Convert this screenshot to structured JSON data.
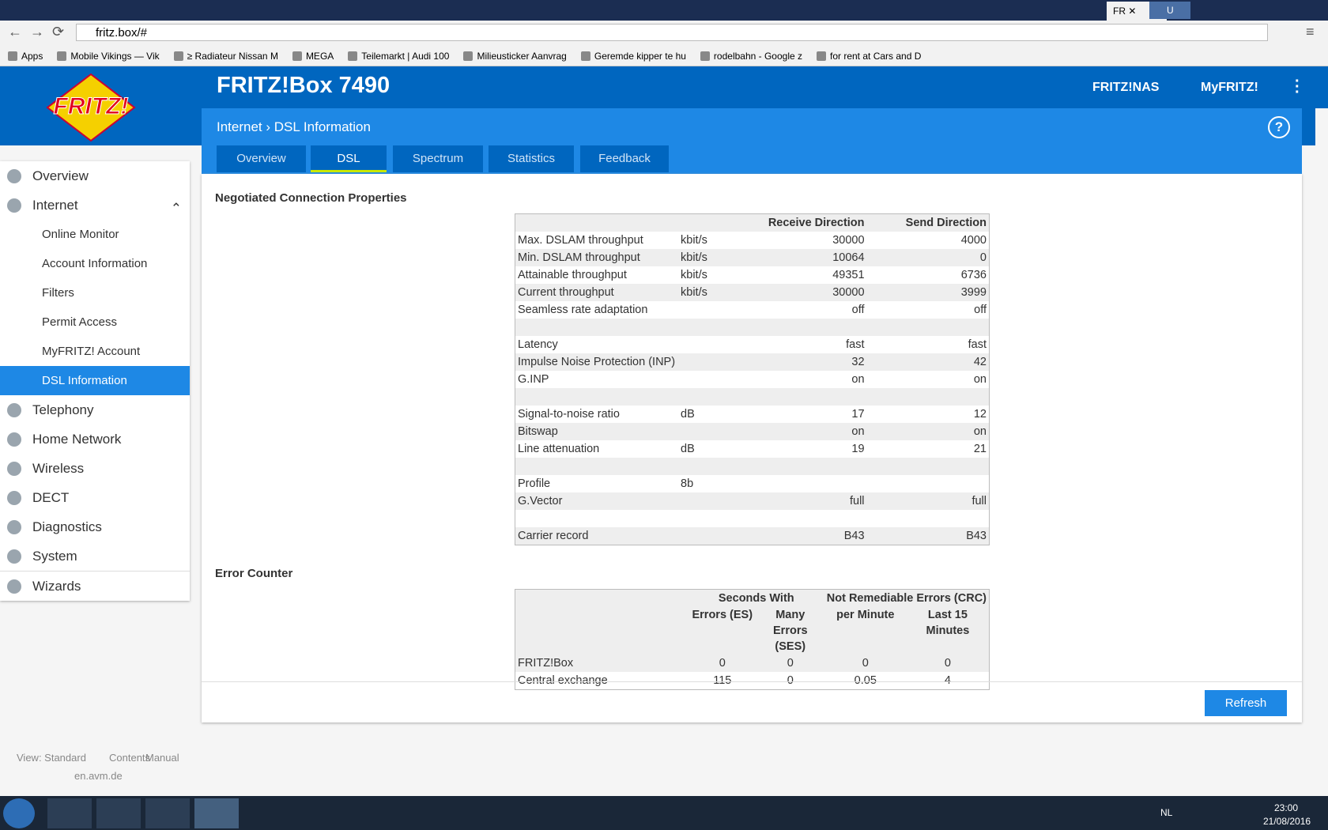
{
  "browser": {
    "tabs": [
      "FR",
      "U"
    ],
    "url": "fritz.box/#",
    "bookmarks": [
      "Apps",
      "Mobile Vikings — Vik",
      "≥ Radiateur Nissan M",
      "MEGA",
      "Teilemarkt | Audi 100",
      "Milieusticker Aanvrag",
      "Geremde kipper te hu",
      "rodelbahn - Google z",
      "for rent at Cars and D"
    ]
  },
  "header": {
    "logo": "FRITZ!",
    "title": "FRITZ!Box 7490",
    "links": [
      "FRITZ!NAS",
      "MyFRITZ!"
    ]
  },
  "breadcrumb": [
    "Internet",
    "DSL Information"
  ],
  "tabs": {
    "items": [
      "Overview",
      "DSL",
      "Spectrum",
      "Statistics",
      "Feedback"
    ],
    "active": 1
  },
  "sidebar": {
    "items": [
      {
        "label": "Overview",
        "level": 1
      },
      {
        "label": "Internet",
        "level": 1
      },
      {
        "label": "Online Monitor",
        "level": 2
      },
      {
        "label": "Account Information",
        "level": 2
      },
      {
        "label": "Filters",
        "level": 2
      },
      {
        "label": "Permit Access",
        "level": 2
      },
      {
        "label": "MyFRITZ! Account",
        "level": 2
      },
      {
        "label": "DSL Information",
        "level": 2
      },
      {
        "label": "Telephony",
        "level": 1
      },
      {
        "label": "Home Network",
        "level": 1
      },
      {
        "label": "Wireless",
        "level": 1
      },
      {
        "label": "DECT",
        "level": 1
      },
      {
        "label": "Diagnostics",
        "level": 1
      },
      {
        "label": "System",
        "level": 1
      },
      {
        "label": "Wizards",
        "level": 1
      }
    ],
    "active": 7
  },
  "connection": {
    "title": "Negotiated Connection Properties",
    "columns": [
      "Receive Direction",
      "Send Direction"
    ],
    "rows": [
      [
        "Max. DSLAM throughput",
        "kbit/s",
        30000,
        4000
      ],
      [
        "Min. DSLAM throughput",
        "kbit/s",
        10064,
        0
      ],
      [
        "Attainable throughput",
        "kbit/s",
        49351,
        6736
      ],
      [
        "Current throughput",
        "kbit/s",
        30000,
        3999
      ],
      [
        "Seamless rate adaptation",
        null,
        "off",
        "off"
      ],
      null,
      [
        "Latency",
        null,
        "fast",
        "fast"
      ],
      [
        "Impulse Noise Protection (INP)",
        null,
        32,
        42
      ],
      [
        "G.INP",
        null,
        "on",
        "on"
      ],
      null,
      [
        "Signal-to-noise ratio",
        "dB",
        17,
        12
      ],
      [
        "Bitswap",
        null,
        "on",
        "on"
      ],
      [
        "Line attenuation",
        "dB",
        19,
        21
      ],
      null,
      [
        "Profile",
        "8b",
        null,
        null
      ],
      [
        "G.Vector",
        null,
        "full",
        "full"
      ],
      null,
      [
        "Carrier record",
        null,
        "B43",
        "B43"
      ]
    ]
  },
  "errors": {
    "title": "Error Counter",
    "groups": [
      "Seconds With",
      "Not Remediable Errors (CRC)"
    ],
    "columns": [
      "Errors (ES)",
      "Many Errors (SES)",
      "per Minute",
      "Last 15 Minutes"
    ],
    "rows": [
      [
        "FRITZ!Box",
        0,
        0,
        0,
        0
      ],
      [
        "Central exchange",
        115,
        0,
        0.05,
        4
      ]
    ]
  },
  "button": "Refresh",
  "footer": {
    "links": [
      "View: Standard",
      "Contents",
      "Manual"
    ],
    "site": "en.avm.de"
  },
  "taskbar": {
    "language": "NL",
    "time": "23:00",
    "date": "21/08/2016"
  }
}
